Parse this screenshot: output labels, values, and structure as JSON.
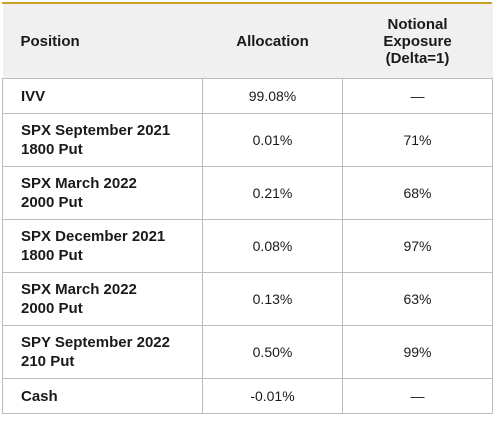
{
  "headers": {
    "position": "Position",
    "allocation": "Allocation",
    "exposure_line1": "Notional",
    "exposure_line2": "Exposure",
    "exposure_line3": "(Delta=1)"
  },
  "rows": [
    {
      "position_line1": "IVV",
      "position_line2": "",
      "allocation": "99.08%",
      "exposure": "—"
    },
    {
      "position_line1": "SPX September 2021",
      "position_line2": "1800 Put",
      "allocation": "0.01%",
      "exposure": "71%"
    },
    {
      "position_line1": "SPX March 2022",
      "position_line2": "2000 Put",
      "allocation": "0.21%",
      "exposure": "68%"
    },
    {
      "position_line1": "SPX December 2021",
      "position_line2": "1800 Put",
      "allocation": "0.08%",
      "exposure": "97%"
    },
    {
      "position_line1": "SPX March 2022",
      "position_line2": "2000 Put",
      "allocation": "0.13%",
      "exposure": "63%"
    },
    {
      "position_line1": "SPY September 2022",
      "position_line2": "210 Put",
      "allocation": "0.50%",
      "exposure": "99%"
    },
    {
      "position_line1": "Cash",
      "position_line2": "",
      "allocation": "-0.01%",
      "exposure": "—"
    }
  ],
  "colors": {
    "top_rule": "#c9a227",
    "header_bg": "#f0f0f0",
    "grid": "#bdbdbd"
  }
}
